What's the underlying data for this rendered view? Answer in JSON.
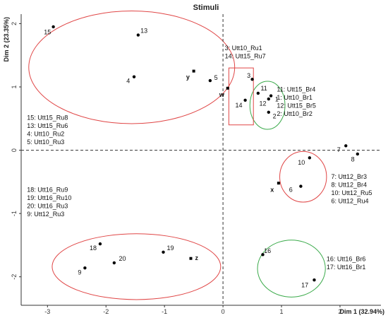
{
  "chart_data": {
    "type": "scatter",
    "title": "Stimuli",
    "xlabel": "Dim 1 (32.94%)",
    "ylabel": "Dim 2 (23.35%)",
    "xlim": [
      -3.45,
      2.7
    ],
    "ylim": [
      -2.45,
      2.15
    ],
    "xticks": [
      -3,
      -2,
      -1,
      0,
      1,
      2
    ],
    "yticks": [
      -2,
      -1,
      0,
      1,
      2
    ],
    "grid": false,
    "colors": {
      "red": "#e04646",
      "green": "#3aaa4a",
      "point": "#000000",
      "ref_line": "#333333"
    },
    "points": [
      {
        "label": "15",
        "x": -2.9,
        "y": 1.95,
        "lx": -3.0,
        "ly": 1.86
      },
      {
        "label": "13",
        "x": -1.45,
        "y": 1.82,
        "lx": -1.35,
        "ly": 1.88
      },
      {
        "label": "4",
        "x": -1.52,
        "y": 1.16,
        "lx": -1.62,
        "ly": 1.09
      },
      {
        "label": "5",
        "x": -0.22,
        "y": 1.1,
        "lx": -0.12,
        "ly": 1.14
      },
      {
        "label": "3",
        "x": 0.5,
        "y": 1.12,
        "lx": 0.44,
        "ly": 1.17
      },
      {
        "label": "14",
        "x": 0.38,
        "y": 0.79,
        "lx": 0.27,
        "ly": 0.7
      },
      {
        "label": "11",
        "x": 0.6,
        "y": 0.9,
        "lx": 0.7,
        "ly": 0.97
      },
      {
        "label": "1",
        "x": 0.82,
        "y": 0.86,
        "lx": 0.92,
        "ly": 0.8
      },
      {
        "label": "12",
        "x": 0.78,
        "y": 0.81,
        "lx": 0.68,
        "ly": 0.73
      },
      {
        "label": "2",
        "x": 0.78,
        "y": 0.6,
        "lx": 0.88,
        "ly": 0.53
      },
      {
        "label": "7",
        "x": 2.1,
        "y": 0.07,
        "lx": 1.98,
        "ly": 0.0
      },
      {
        "label": "8",
        "x": 2.3,
        "y": -0.06,
        "lx": 2.22,
        "ly": -0.15
      },
      {
        "label": "10",
        "x": 1.48,
        "y": -0.12,
        "lx": 1.34,
        "ly": -0.2
      },
      {
        "label": "6",
        "x": 1.33,
        "y": -0.57,
        "lx": 1.16,
        "ly": -0.63
      },
      {
        "label": "16",
        "x": 0.68,
        "y": -1.65,
        "lx": 0.76,
        "ly": -1.6
      },
      {
        "label": "17",
        "x": 1.56,
        "y": -2.05,
        "lx": 1.4,
        "ly": -2.14
      },
      {
        "label": "18",
        "x": -2.1,
        "y": -1.48,
        "lx": -2.22,
        "ly": -1.55
      },
      {
        "label": "9",
        "x": -2.36,
        "y": -1.86,
        "lx": -2.45,
        "ly": -1.94
      },
      {
        "label": "20",
        "x": -1.86,
        "y": -1.78,
        "lx": -1.72,
        "ly": -1.72
      },
      {
        "label": "19",
        "x": -1.02,
        "y": -1.61,
        "lx": -0.9,
        "ly": -1.55
      }
    ],
    "supplementary": [
      {
        "label": "y",
        "x": -0.5,
        "y": 1.25,
        "lx": -0.6,
        "ly": 1.15
      },
      {
        "label": "w",
        "x": 0.08,
        "y": 0.98,
        "lx": -0.02,
        "ly": 0.87
      },
      {
        "label": "x",
        "x": 0.95,
        "y": -0.52,
        "lx": 0.84,
        "ly": -0.63
      },
      {
        "label": "z",
        "x": -0.55,
        "y": -1.71,
        "lx": -0.45,
        "ly": -1.71
      }
    ],
    "ellipses": [
      {
        "color": "red",
        "cx": -1.56,
        "cy": 1.31,
        "rx": 1.76,
        "ry": 0.89
      },
      {
        "color": "red",
        "cx": -1.48,
        "cy": -1.84,
        "rx": 1.44,
        "ry": 0.52
      },
      {
        "color": "green",
        "cx": 0.76,
        "cy": 0.71,
        "rx": 0.3,
        "ry": 0.38
      },
      {
        "color": "red",
        "cx": 1.37,
        "cy": -0.42,
        "rx": 0.4,
        "ry": 0.4
      },
      {
        "color": "green",
        "cx": 1.17,
        "cy": -1.87,
        "rx": 0.58,
        "ry": 0.45
      }
    ],
    "rectangles": [
      {
        "color": "red",
        "x0": 0.1,
        "x1": 0.52,
        "y0": 0.4,
        "y1": 1.3
      }
    ],
    "annotations": [
      {
        "lines": [
          "3:   Utt10_Ru1",
          "14:  Utt15_Ru7"
        ],
        "ax": 0.03,
        "ay": 1.58
      },
      {
        "lines": [
          "11:  Utt15_Br4",
          "1:    Utt10_Br1",
          "12:  Utt15_Br5",
          "2:    Utt10_Br2"
        ],
        "ax": 0.92,
        "ay": 0.93
      },
      {
        "lines": [
          "15:  Utt15_Ru8",
          "13:  Utt15_Ru6",
          "4:    Utt10_Ru2",
          "5:    Utt10_Ru3"
        ],
        "ax": -3.35,
        "ay": 0.48
      },
      {
        "lines": [
          "7:    Utt12_Br3",
          "8:    Utt12_Br4",
          "10:  Utt12_Ru5",
          "6:    Utt12_Ru4"
        ],
        "ax": 1.85,
        "ay": -0.45
      },
      {
        "lines": [
          "18:  Utt16_Ru9",
          "19:  Utt16_Ru10",
          "20:  Utt16_Ru3",
          "9:    Utt12_Ru3"
        ],
        "ax": -3.35,
        "ay": -0.66
      },
      {
        "lines": [
          "16:  Utt16_Br6",
          "17:  Utt16_Br1"
        ],
        "ax": 1.77,
        "ay": -1.75
      }
    ]
  }
}
